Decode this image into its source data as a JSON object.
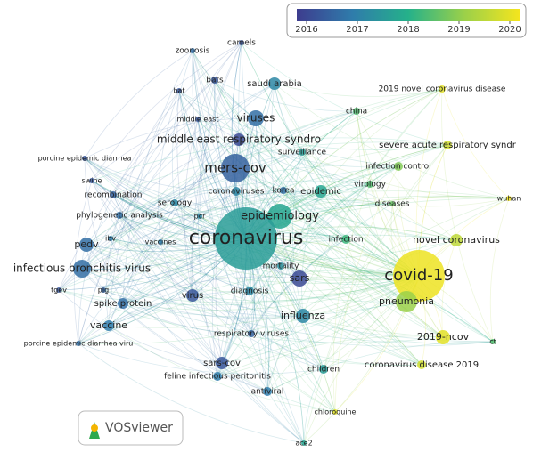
{
  "legend": {
    "ticks": [
      2016,
      2017,
      2018,
      2019,
      2020
    ]
  },
  "nodes": [
    "camels",
    "zoonosis",
    "bats",
    "saudi arabia",
    "bat",
    "middle east",
    "viruses",
    "china",
    "2019 novel coronavirus disease",
    "middle east respiratory syndro",
    "severe acute respiratory syndr",
    "porcine epidemic diarrhea",
    "mers-cov",
    "surveillance",
    "infection control",
    "swine",
    "coronaviruses",
    "korea",
    "epidemic",
    "virology",
    "recombination",
    "serology",
    "diseases",
    "wuhan",
    "phylogenetic analysis",
    "pcr",
    "epidemiology",
    "ibv",
    "pedv",
    "vaccines",
    "coronavirus",
    "infection",
    "novel coronavirus",
    "infectious bronchitis virus",
    "mortality",
    "covid-19",
    "sars",
    "tgev",
    "pig",
    "diagnosis",
    "virus",
    "spike protein",
    "pneumonia",
    "influenza",
    "vaccine",
    "porcine epidemic diarrhea viru",
    "respiratory viruses",
    "2019-ncov",
    "ct",
    "sars-cov",
    "children",
    "coronavirus disease 2019",
    "feline infectious peritonitis",
    "antiviral",
    "chloroquine",
    "ace2"
  ],
  "logo": {
    "text": "VOSviewer"
  }
}
